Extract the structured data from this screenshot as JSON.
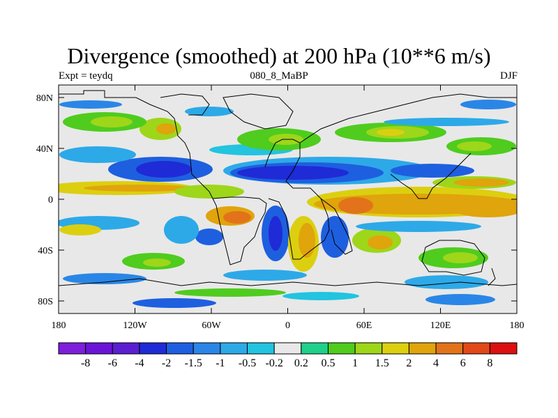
{
  "title": "Divergence (smoothed) at 200 hPa (10**6 m/s)",
  "left_label": "Expt = teydq",
  "center_label": "080_8_MaBP",
  "right_label": "DJF",
  "lat_ticks": [
    "80N",
    "40N",
    "0",
    "40S",
    "80S"
  ],
  "lon_ticks": [
    "180",
    "120W",
    "60W",
    "0",
    "60E",
    "120E",
    "180"
  ],
  "colorbar": {
    "colors": [
      "#7d1fdb",
      "#6a14d8",
      "#5a1fd0",
      "#1f2bd6",
      "#1e5fe0",
      "#2a86e6",
      "#2da9e8",
      "#22c4e0",
      "#e8e8e8",
      "#1fd08a",
      "#4fcc1e",
      "#9ed61a",
      "#dccf10",
      "#e0a40c",
      "#e2731a",
      "#e24818",
      "#dc1010"
    ],
    "labels": [
      "-8",
      "-6",
      "-4",
      "-2",
      "-1.5",
      "-1",
      "-0.5",
      "-0.2",
      "0.2",
      "0.5",
      "1",
      "1.5",
      "2",
      "4",
      "6",
      "8"
    ]
  }
}
